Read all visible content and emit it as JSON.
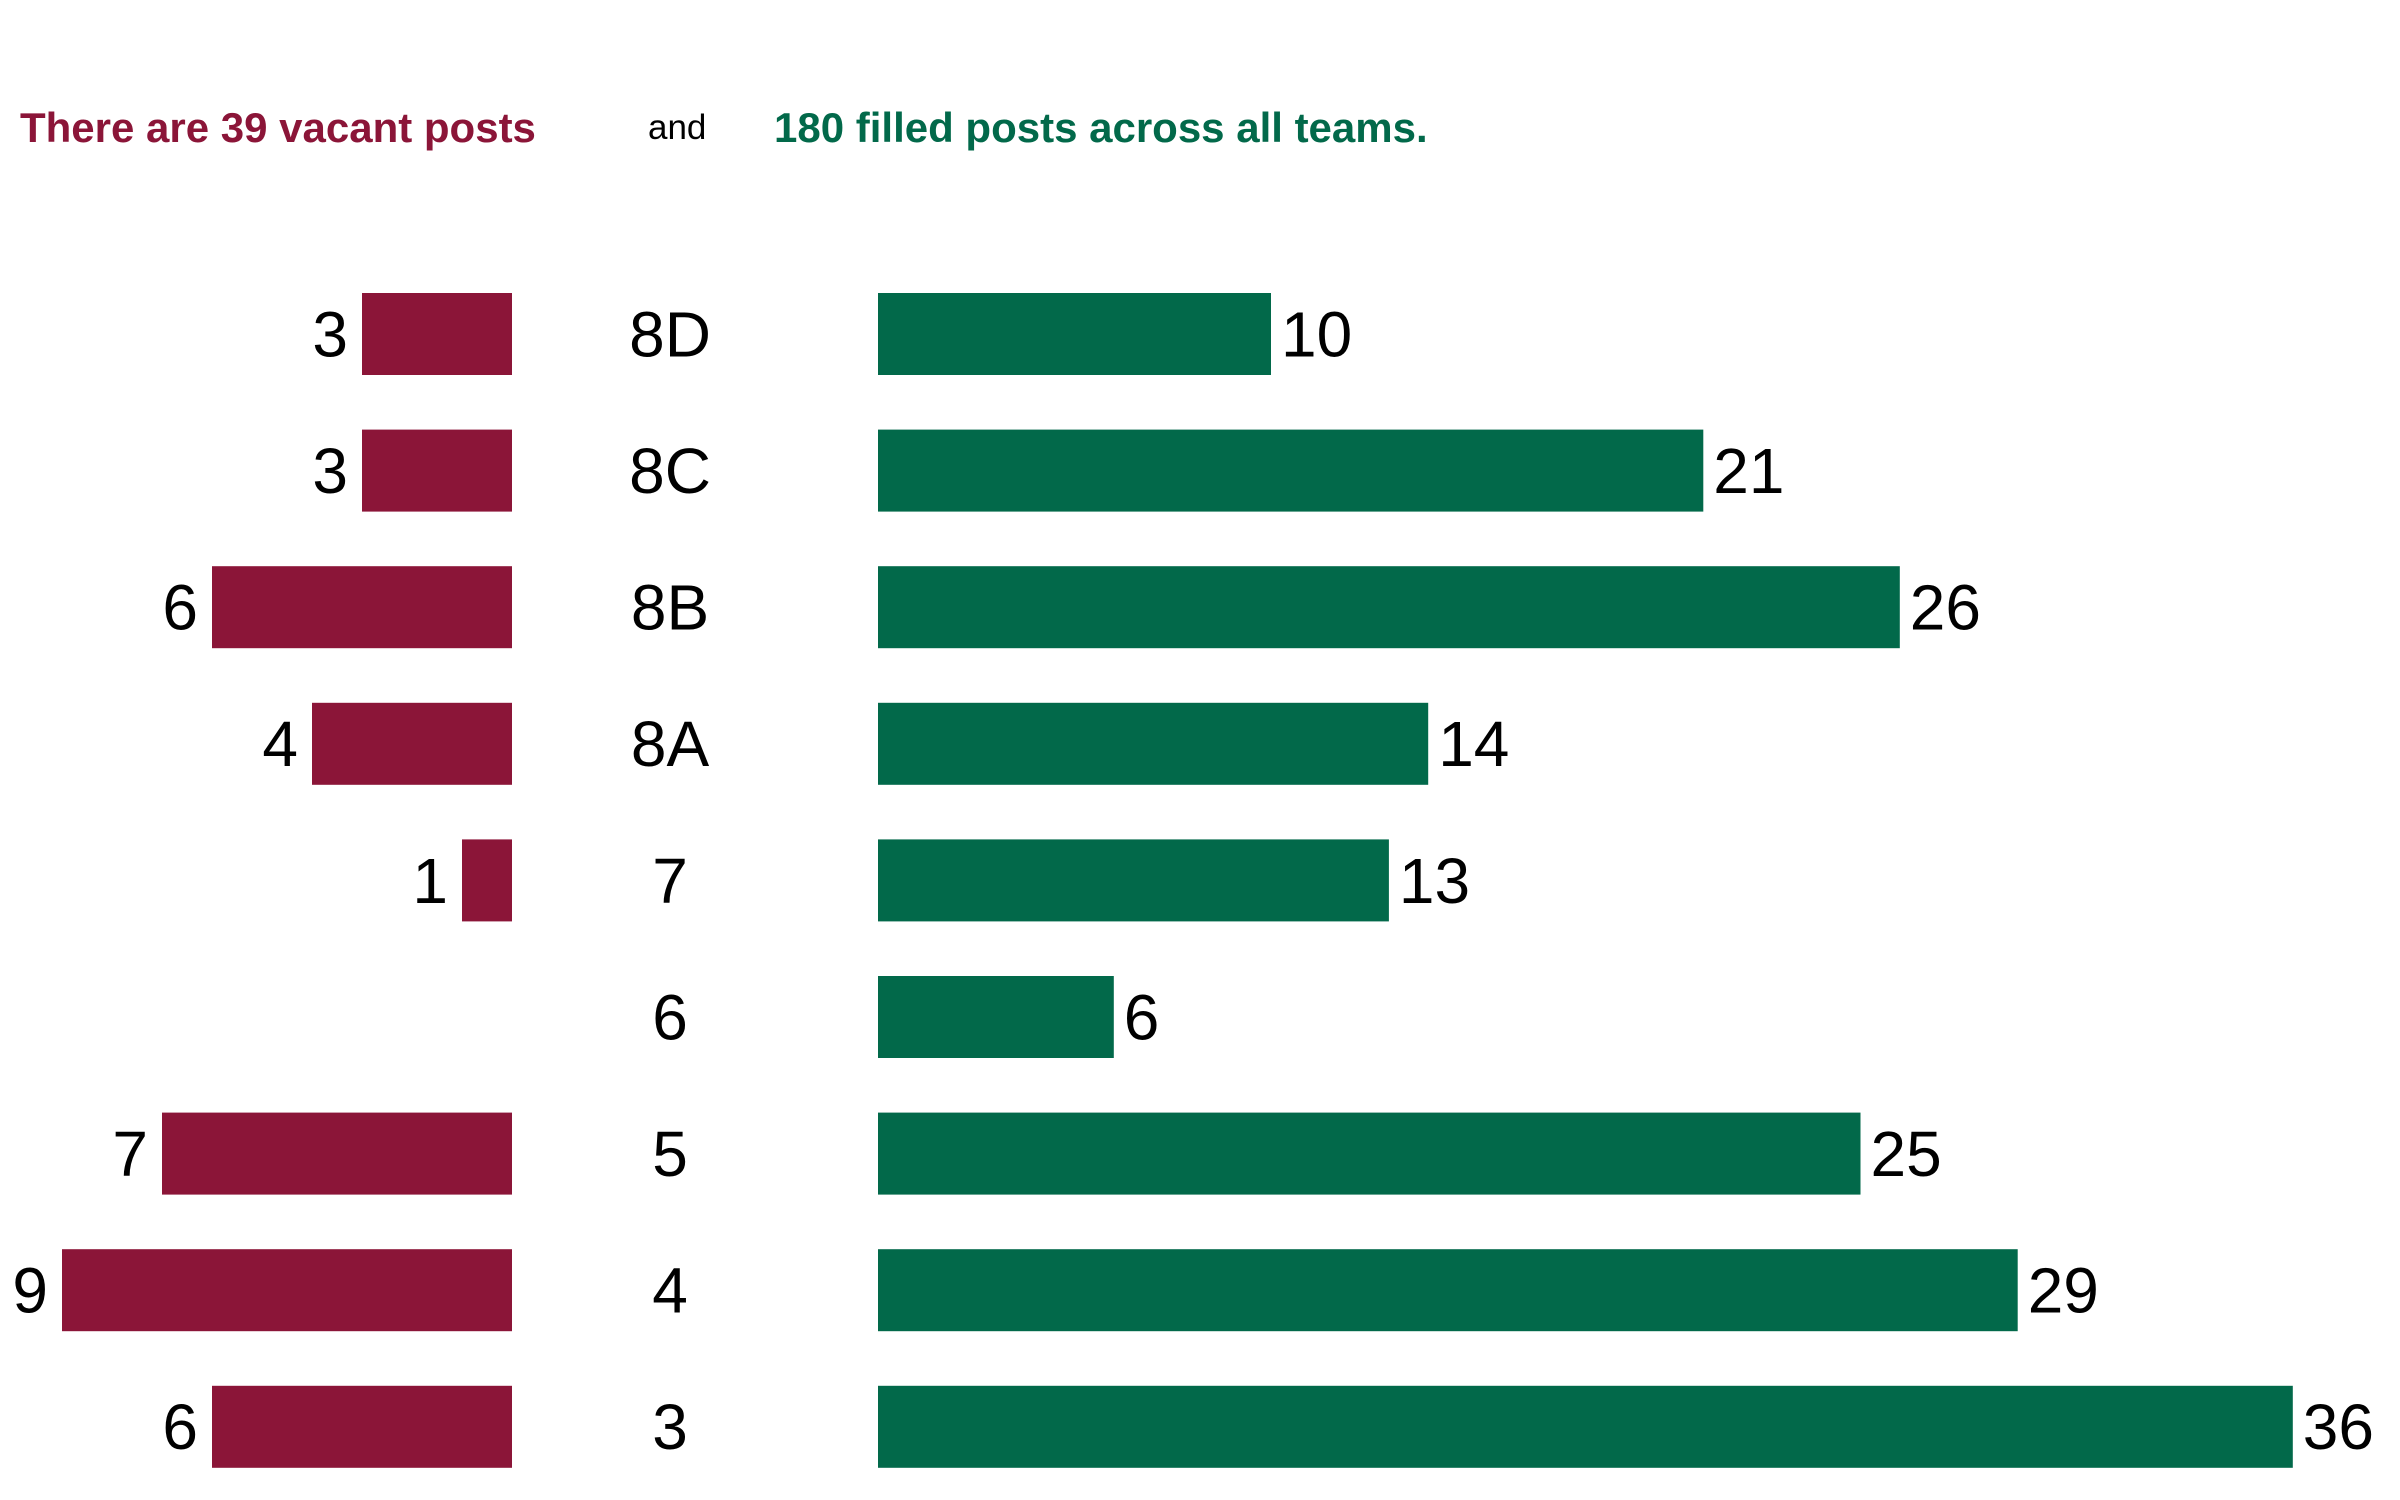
{
  "header": {
    "vacant_text": "There are 39 vacant posts",
    "and_text": "and",
    "filled_text": "180 filled posts across all teams."
  },
  "colors": {
    "vacant": "#8b1538",
    "filled": "#02694a",
    "label": "#000000"
  },
  "chart_data": {
    "type": "bar",
    "categories": [
      "8D",
      "8C",
      "8B",
      "8A",
      "7",
      "6",
      "5",
      "4",
      "3"
    ],
    "series": [
      {
        "name": "vacant",
        "values": [
          3,
          3,
          6,
          4,
          1,
          0,
          7,
          9,
          6
        ]
      },
      {
        "name": "filled",
        "values": [
          10,
          21,
          26,
          14,
          13,
          6,
          25,
          29,
          36
        ]
      }
    ],
    "legend": "none",
    "grid": false
  }
}
